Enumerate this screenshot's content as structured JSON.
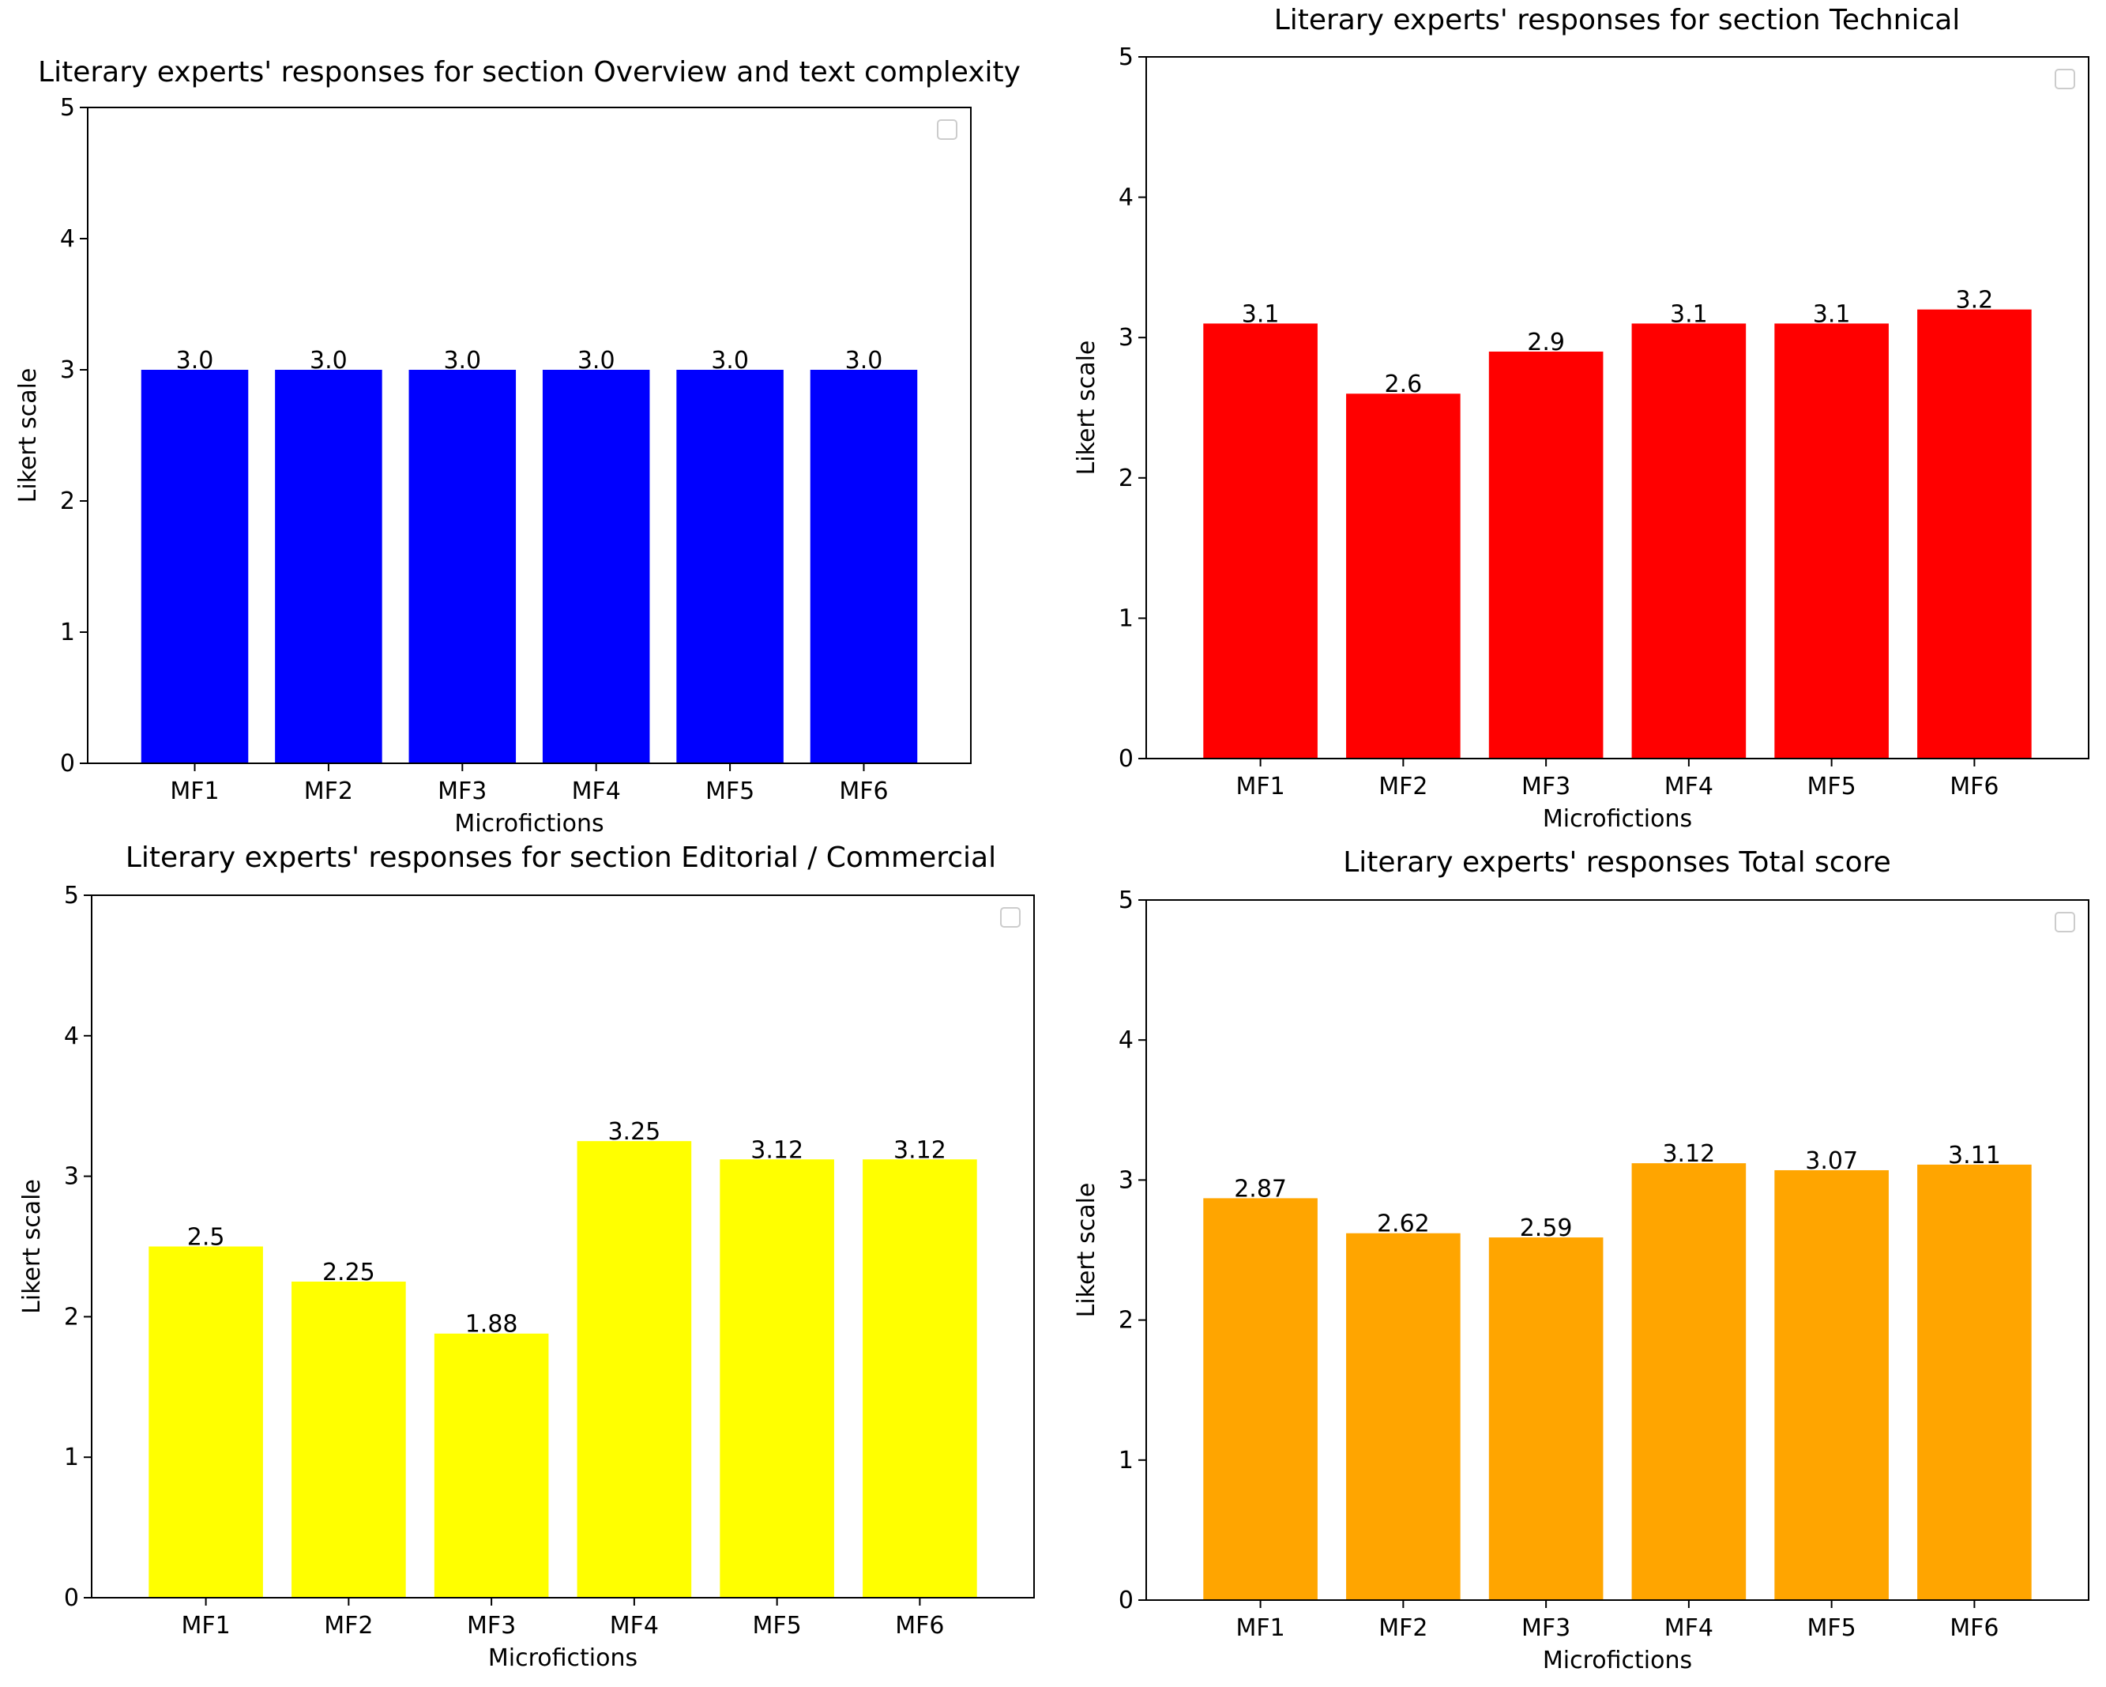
{
  "figure": {
    "panels": [
      {
        "title": "Literary experts' responses for section Overview and text complexity"
      },
      {
        "title": "Literary experts' responses for section Technical"
      },
      {
        "title": "Literary experts' responses for section Editorial / Commercial"
      },
      {
        "title": "Literary experts' responses Total score"
      }
    ]
  },
  "chart_data": [
    {
      "type": "bar",
      "title": "Literary experts' responses for section Overview and text complexity",
      "xlabel": "Microfictions",
      "ylabel": "Likert scale",
      "categories": [
        "MF1",
        "MF2",
        "MF3",
        "MF4",
        "MF5",
        "MF6"
      ],
      "values": [
        3.0,
        3.0,
        3.0,
        3.0,
        3.0,
        3.0
      ],
      "labels": [
        "3.0",
        "3.0",
        "3.0",
        "3.0",
        "3.0",
        "3.0"
      ],
      "ylim": [
        0,
        5
      ],
      "yticks": [
        "0",
        "1",
        "2",
        "3",
        "4",
        "5"
      ],
      "color": "#0000ff",
      "grid": false,
      "legend": "upper-right (empty)"
    },
    {
      "type": "bar",
      "title": "Literary experts' responses for section Technical",
      "xlabel": "Microfictions",
      "ylabel": "Likert scale",
      "categories": [
        "MF1",
        "MF2",
        "MF3",
        "MF4",
        "MF5",
        "MF6"
      ],
      "values": [
        3.1,
        2.6,
        2.9,
        3.1,
        3.1,
        3.2
      ],
      "labels": [
        "3.1",
        "2.6",
        "2.9",
        "3.1",
        "3.1",
        "3.2"
      ],
      "ylim": [
        0,
        5
      ],
      "yticks": [
        "0",
        "1",
        "2",
        "3",
        "4",
        "5"
      ],
      "color": "#ff0000",
      "grid": false,
      "legend": "upper-right (empty)"
    },
    {
      "type": "bar",
      "title": "Literary experts' responses for section Editorial / Commercial",
      "xlabel": "Microfictions",
      "ylabel": "Likert scale",
      "categories": [
        "MF1",
        "MF2",
        "MF3",
        "MF4",
        "MF5",
        "MF6"
      ],
      "values": [
        2.5,
        2.25,
        1.88,
        3.25,
        3.12,
        3.12
      ],
      "labels": [
        "2.5",
        "2.25",
        "1.88",
        "3.25",
        "3.12",
        "3.12"
      ],
      "ylim": [
        0,
        5
      ],
      "yticks": [
        "0",
        "1",
        "2",
        "3",
        "4",
        "5"
      ],
      "color": "#ffff00",
      "grid": false,
      "legend": "upper-right (empty)"
    },
    {
      "type": "bar",
      "title": "Literary experts' responses Total score",
      "xlabel": "Microfictions",
      "ylabel": "Likert scale",
      "categories": [
        "MF1",
        "MF2",
        "MF3",
        "MF4",
        "MF5",
        "MF6"
      ],
      "values": [
        2.87,
        2.62,
        2.59,
        3.12,
        3.07,
        3.11
      ],
      "labels": [
        "2.87",
        "2.62",
        "2.59",
        "3.12",
        "3.07",
        "3.11"
      ],
      "ylim": [
        0,
        5
      ],
      "yticks": [
        "0",
        "1",
        "2",
        "3",
        "4",
        "5"
      ],
      "color": "#ffa500",
      "grid": false,
      "legend": "upper-right (empty)"
    }
  ]
}
